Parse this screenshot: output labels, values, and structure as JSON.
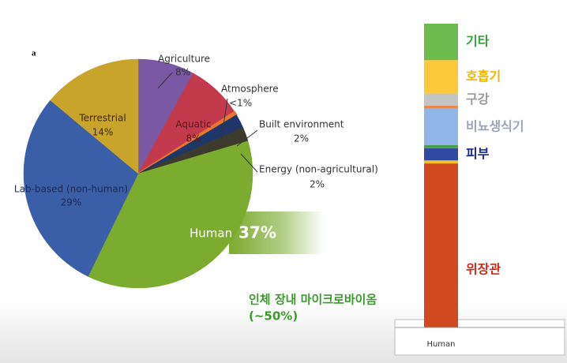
{
  "chart_data": [
    {
      "type": "pie",
      "panel_label": "a",
      "categories": [
        "Agriculture",
        "Aquatic",
        "Atmosphere",
        "Built environment",
        "Energy (non-agricultural)",
        "Human",
        "Lab-based (non-human)",
        "Terrestrial"
      ],
      "values": [
        8,
        8,
        0.5,
        2,
        2,
        37,
        29,
        14
      ],
      "value_labels": [
        "8%",
        "8%",
        "<1%",
        "2%",
        "2%",
        "37%",
        "29%",
        "14%"
      ],
      "colors": [
        "#7a58a4",
        "#c23a4c",
        "#e8772e",
        "#1f3768",
        "#3b3a2c",
        "#7bab2f",
        "#3b5ea8",
        "#c9a42b"
      ],
      "annotations": [
        "인체 장내 마이크로바이옴",
        "(~50%)"
      ]
    },
    {
      "type": "stacked-bar",
      "categories": [
        "Human"
      ],
      "ylim": [
        0,
        100
      ],
      "series": [
        {
          "name": "위장관",
          "color": "#d14a1f",
          "label_color": "#d02a1a",
          "values": [
            54
          ]
        },
        {
          "color": "#f2c02a",
          "values": [
            1
          ]
        },
        {
          "name": "피부",
          "color": "#2f4aa0",
          "label_color": "#1a2a9a",
          "values": [
            4
          ]
        },
        {
          "color": "#4aa04a",
          "values": [
            1
          ]
        },
        {
          "name": "비뇨생식기",
          "color": "#8fb6e6",
          "label_color": "#9aa6b6",
          "values": [
            12
          ]
        },
        {
          "color": "#e88a50",
          "values": [
            1
          ]
        },
        {
          "name": "구강",
          "color": "#c4c4c4",
          "label_color": "#9a9a9a",
          "values": [
            4
          ]
        },
        {
          "name": "호흡기",
          "color": "#fdc93a",
          "label_color": "#f2b400",
          "values": [
            11
          ]
        },
        {
          "name": "기타",
          "color": "#6dbb4e",
          "label_color": "#3aa040",
          "values": [
            12
          ]
        }
      ]
    }
  ]
}
